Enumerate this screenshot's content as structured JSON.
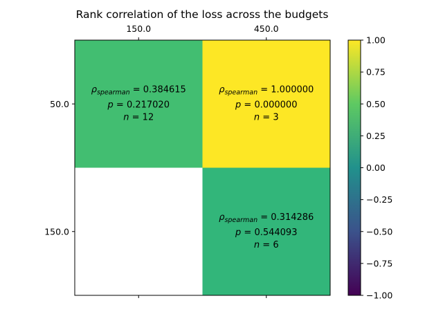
{
  "chart_data": {
    "type": "heatmap",
    "title": "Rank correlation of the loss across the budgets",
    "x_categories": [
      "150.0",
      "450.0"
    ],
    "y_categories": [
      "50.0",
      "150.0"
    ],
    "cells": [
      {
        "row": 0,
        "col": 0,
        "rho": 0.384615,
        "rho_label": "ρspearman = 0.384615",
        "rho_value": "0.384615",
        "p_label": "p = 0.217020",
        "p_value": "0.217020",
        "n_label": "n = 12",
        "n_value": "12",
        "color": "#42be71"
      },
      {
        "row": 0,
        "col": 1,
        "rho": 1.0,
        "rho_label": "ρspearman = 1.000000",
        "rho_value": "1.000000",
        "p_label": "p = 0.000000",
        "p_value": "0.000000",
        "n_label": "n = 3",
        "n_value": "3",
        "color": "#fde725"
      },
      {
        "row": 1,
        "col": 1,
        "rho": 0.314286,
        "rho_label": "ρspearman = 0.314286",
        "rho_value": "0.314286",
        "p_label": "p = 0.544093",
        "p_value": "0.544093",
        "n_label": "n = 6",
        "n_value": "6",
        "color": "#32b67a"
      }
    ],
    "empty_cells": [
      {
        "row": 1,
        "col": 0
      }
    ],
    "colorbar": {
      "range": [
        -1.0,
        1.0
      ],
      "ticks": [
        1.0,
        0.75,
        0.5,
        0.25,
        0.0,
        -0.25,
        -0.5,
        -0.75,
        -1.0
      ],
      "tick_labels": [
        "1.00",
        "0.75",
        "0.50",
        "0.25",
        "0.00",
        "−0.25",
        "−0.50",
        "−0.75",
        "−1.00"
      ],
      "colormap": "viridis",
      "stops": [
        "#440154",
        "#3b528b",
        "#21918c",
        "#5ec962",
        "#fde725"
      ]
    },
    "x_axis_position": "top",
    "grid": false
  }
}
